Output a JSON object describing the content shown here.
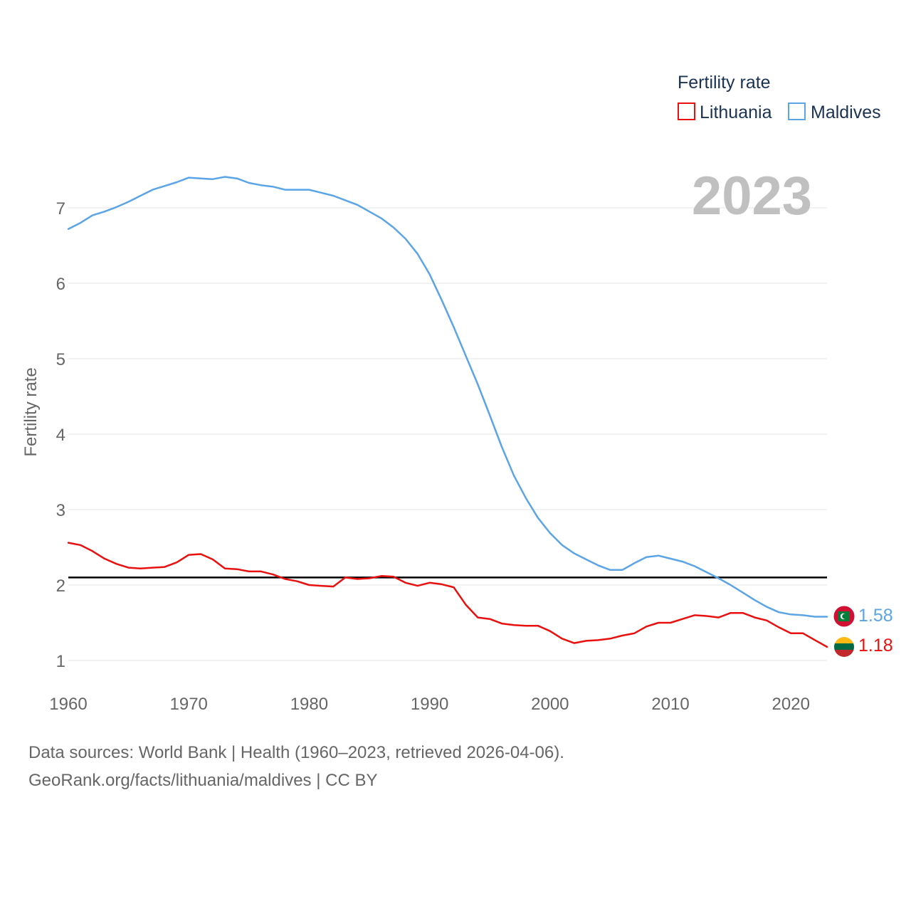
{
  "chart_data": {
    "type": "line",
    "title": "",
    "legend_title": "Fertility rate",
    "legend_position": "top-right",
    "year_label": "2023",
    "ylabel": "Fertility rate",
    "xlabel": "",
    "xlim": [
      1960,
      2023
    ],
    "ylim": [
      0.8,
      7.6
    ],
    "x_ticks": [
      1960,
      1970,
      1980,
      1990,
      2000,
      2010,
      2020
    ],
    "y_ticks": [
      1,
      2,
      3,
      4,
      5,
      6,
      7
    ],
    "grid": true,
    "reference_line": {
      "value": 2.1,
      "color": "#000000"
    },
    "x": [
      1960,
      1961,
      1962,
      1963,
      1964,
      1965,
      1966,
      1967,
      1968,
      1969,
      1970,
      1971,
      1972,
      1973,
      1974,
      1975,
      1976,
      1977,
      1978,
      1979,
      1980,
      1981,
      1982,
      1983,
      1984,
      1985,
      1986,
      1987,
      1988,
      1989,
      1990,
      1991,
      1992,
      1993,
      1994,
      1995,
      1996,
      1997,
      1998,
      1999,
      2000,
      2001,
      2002,
      2003,
      2004,
      2005,
      2006,
      2007,
      2008,
      2009,
      2010,
      2011,
      2012,
      2013,
      2014,
      2015,
      2016,
      2017,
      2018,
      2019,
      2020,
      2021,
      2022,
      2023
    ],
    "series": [
      {
        "name": "Lithuania",
        "color": "#e8110f",
        "end_label": "1.18",
        "values": [
          2.56,
          2.53,
          2.45,
          2.35,
          2.28,
          2.23,
          2.22,
          2.23,
          2.24,
          2.3,
          2.4,
          2.41,
          2.34,
          2.22,
          2.21,
          2.18,
          2.18,
          2.14,
          2.08,
          2.05,
          2.0,
          1.99,
          1.98,
          2.1,
          2.08,
          2.09,
          2.12,
          2.11,
          2.03,
          1.99,
          2.03,
          2.01,
          1.97,
          1.74,
          1.57,
          1.55,
          1.49,
          1.47,
          1.46,
          1.46,
          1.39,
          1.29,
          1.23,
          1.26,
          1.27,
          1.29,
          1.33,
          1.36,
          1.45,
          1.5,
          1.5,
          1.55,
          1.6,
          1.59,
          1.57,
          1.63,
          1.63,
          1.57,
          1.53,
          1.44,
          1.36,
          1.36,
          1.27,
          1.18
        ]
      },
      {
        "name": "Maldives",
        "color": "#5ba4e6",
        "end_label": "1.58",
        "values": [
          6.72,
          6.8,
          6.9,
          6.95,
          7.01,
          7.08,
          7.16,
          7.24,
          7.29,
          7.34,
          7.4,
          7.39,
          7.38,
          7.41,
          7.39,
          7.33,
          7.3,
          7.28,
          7.24,
          7.24,
          7.24,
          7.2,
          7.16,
          7.1,
          7.04,
          6.95,
          6.86,
          6.74,
          6.59,
          6.39,
          6.12,
          5.78,
          5.42,
          5.04,
          4.66,
          4.25,
          3.83,
          3.45,
          3.15,
          2.89,
          2.69,
          2.53,
          2.42,
          2.34,
          2.26,
          2.2,
          2.2,
          2.29,
          2.37,
          2.39,
          2.35,
          2.31,
          2.25,
          2.17,
          2.09,
          2.0,
          1.9,
          1.8,
          1.71,
          1.64,
          1.61,
          1.6,
          1.58,
          1.58
        ]
      }
    ]
  },
  "footer": {
    "line1": "Data sources: World Bank | Health (1960–2023, retrieved 2026-04-06).",
    "line2": "GeoRank.org/facts/lithuania/maldives | CC BY"
  },
  "colors": {
    "grid": "#e6e6e6",
    "lithuania_flag": [
      "#fdb913",
      "#006a44",
      "#c1272d"
    ],
    "maldives_flag": [
      "#d21034",
      "#007e3a",
      "#ffffff"
    ]
  },
  "icons": {
    "lithuania": "lithuania-flag-icon",
    "maldives": "maldives-flag-icon"
  }
}
